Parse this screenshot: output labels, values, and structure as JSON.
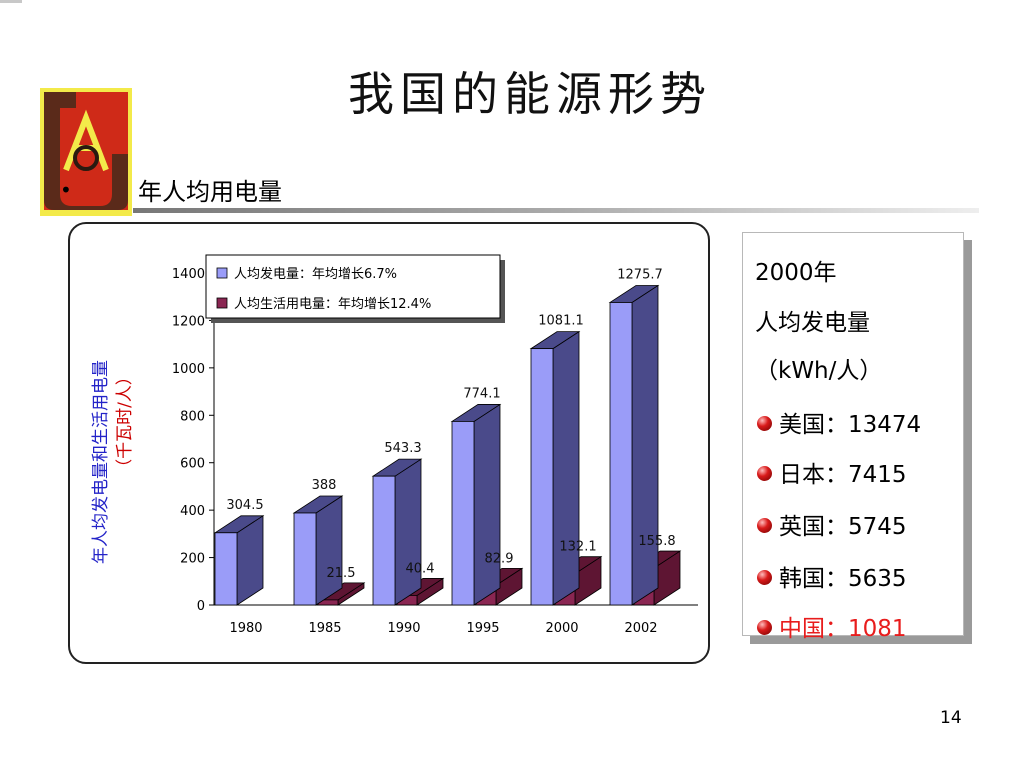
{
  "slide": {
    "title": "我国的能源形势",
    "subtitle": "年人均用电量",
    "bullet": "•",
    "page_number": "14"
  },
  "colors": {
    "series1_front": "#9a9cf8",
    "series1_side": "#4a4a8a",
    "series2_front": "#8a2652",
    "series2_side": "#5e1533",
    "ylabel_blue": "#2323c8",
    "ylabel_red": "#cc0000",
    "china_red": "#e81c1c"
  },
  "chart_data": {
    "type": "bar",
    "categories": [
      "1980",
      "1985",
      "1990",
      "1995",
      "2000",
      "2002"
    ],
    "series": [
      {
        "name": "人均发电量：年均增长6.7%",
        "values": [
          304.5,
          388,
          543.3,
          774.1,
          1081.1,
          1275.7
        ]
      },
      {
        "name": "人均生活用电量：年均增长12.4%",
        "values": [
          null,
          21.5,
          40.4,
          82.9,
          132.1,
          155.8
        ]
      }
    ],
    "data_labels": [
      [
        "304.5",
        "388",
        "543.3",
        "774.1",
        "1081.1",
        "1275.7"
      ],
      [
        "",
        "21.5",
        "40.4",
        "82.9",
        "132.1",
        "155.8"
      ]
    ],
    "ylabel": "年人均发电量和生活用电量",
    "ylabel_unit": "（千瓦时/人）",
    "ylim": [
      0,
      1400
    ],
    "yticks": [
      0,
      200,
      400,
      600,
      800,
      1000,
      1200,
      1400
    ],
    "style": "3d-clustered",
    "legend": "top"
  },
  "info": {
    "lines": [
      "2000年",
      "人均发电量",
      "（kWh/人）"
    ],
    "countries": [
      {
        "label": "美国：13474",
        "highlight": false
      },
      {
        "label": "日本：7415",
        "highlight": false
      },
      {
        "label": "英国：5745",
        "highlight": false
      },
      {
        "label": "韩国：5635",
        "highlight": false
      },
      {
        "label": "中国：1081",
        "highlight": true
      }
    ]
  }
}
